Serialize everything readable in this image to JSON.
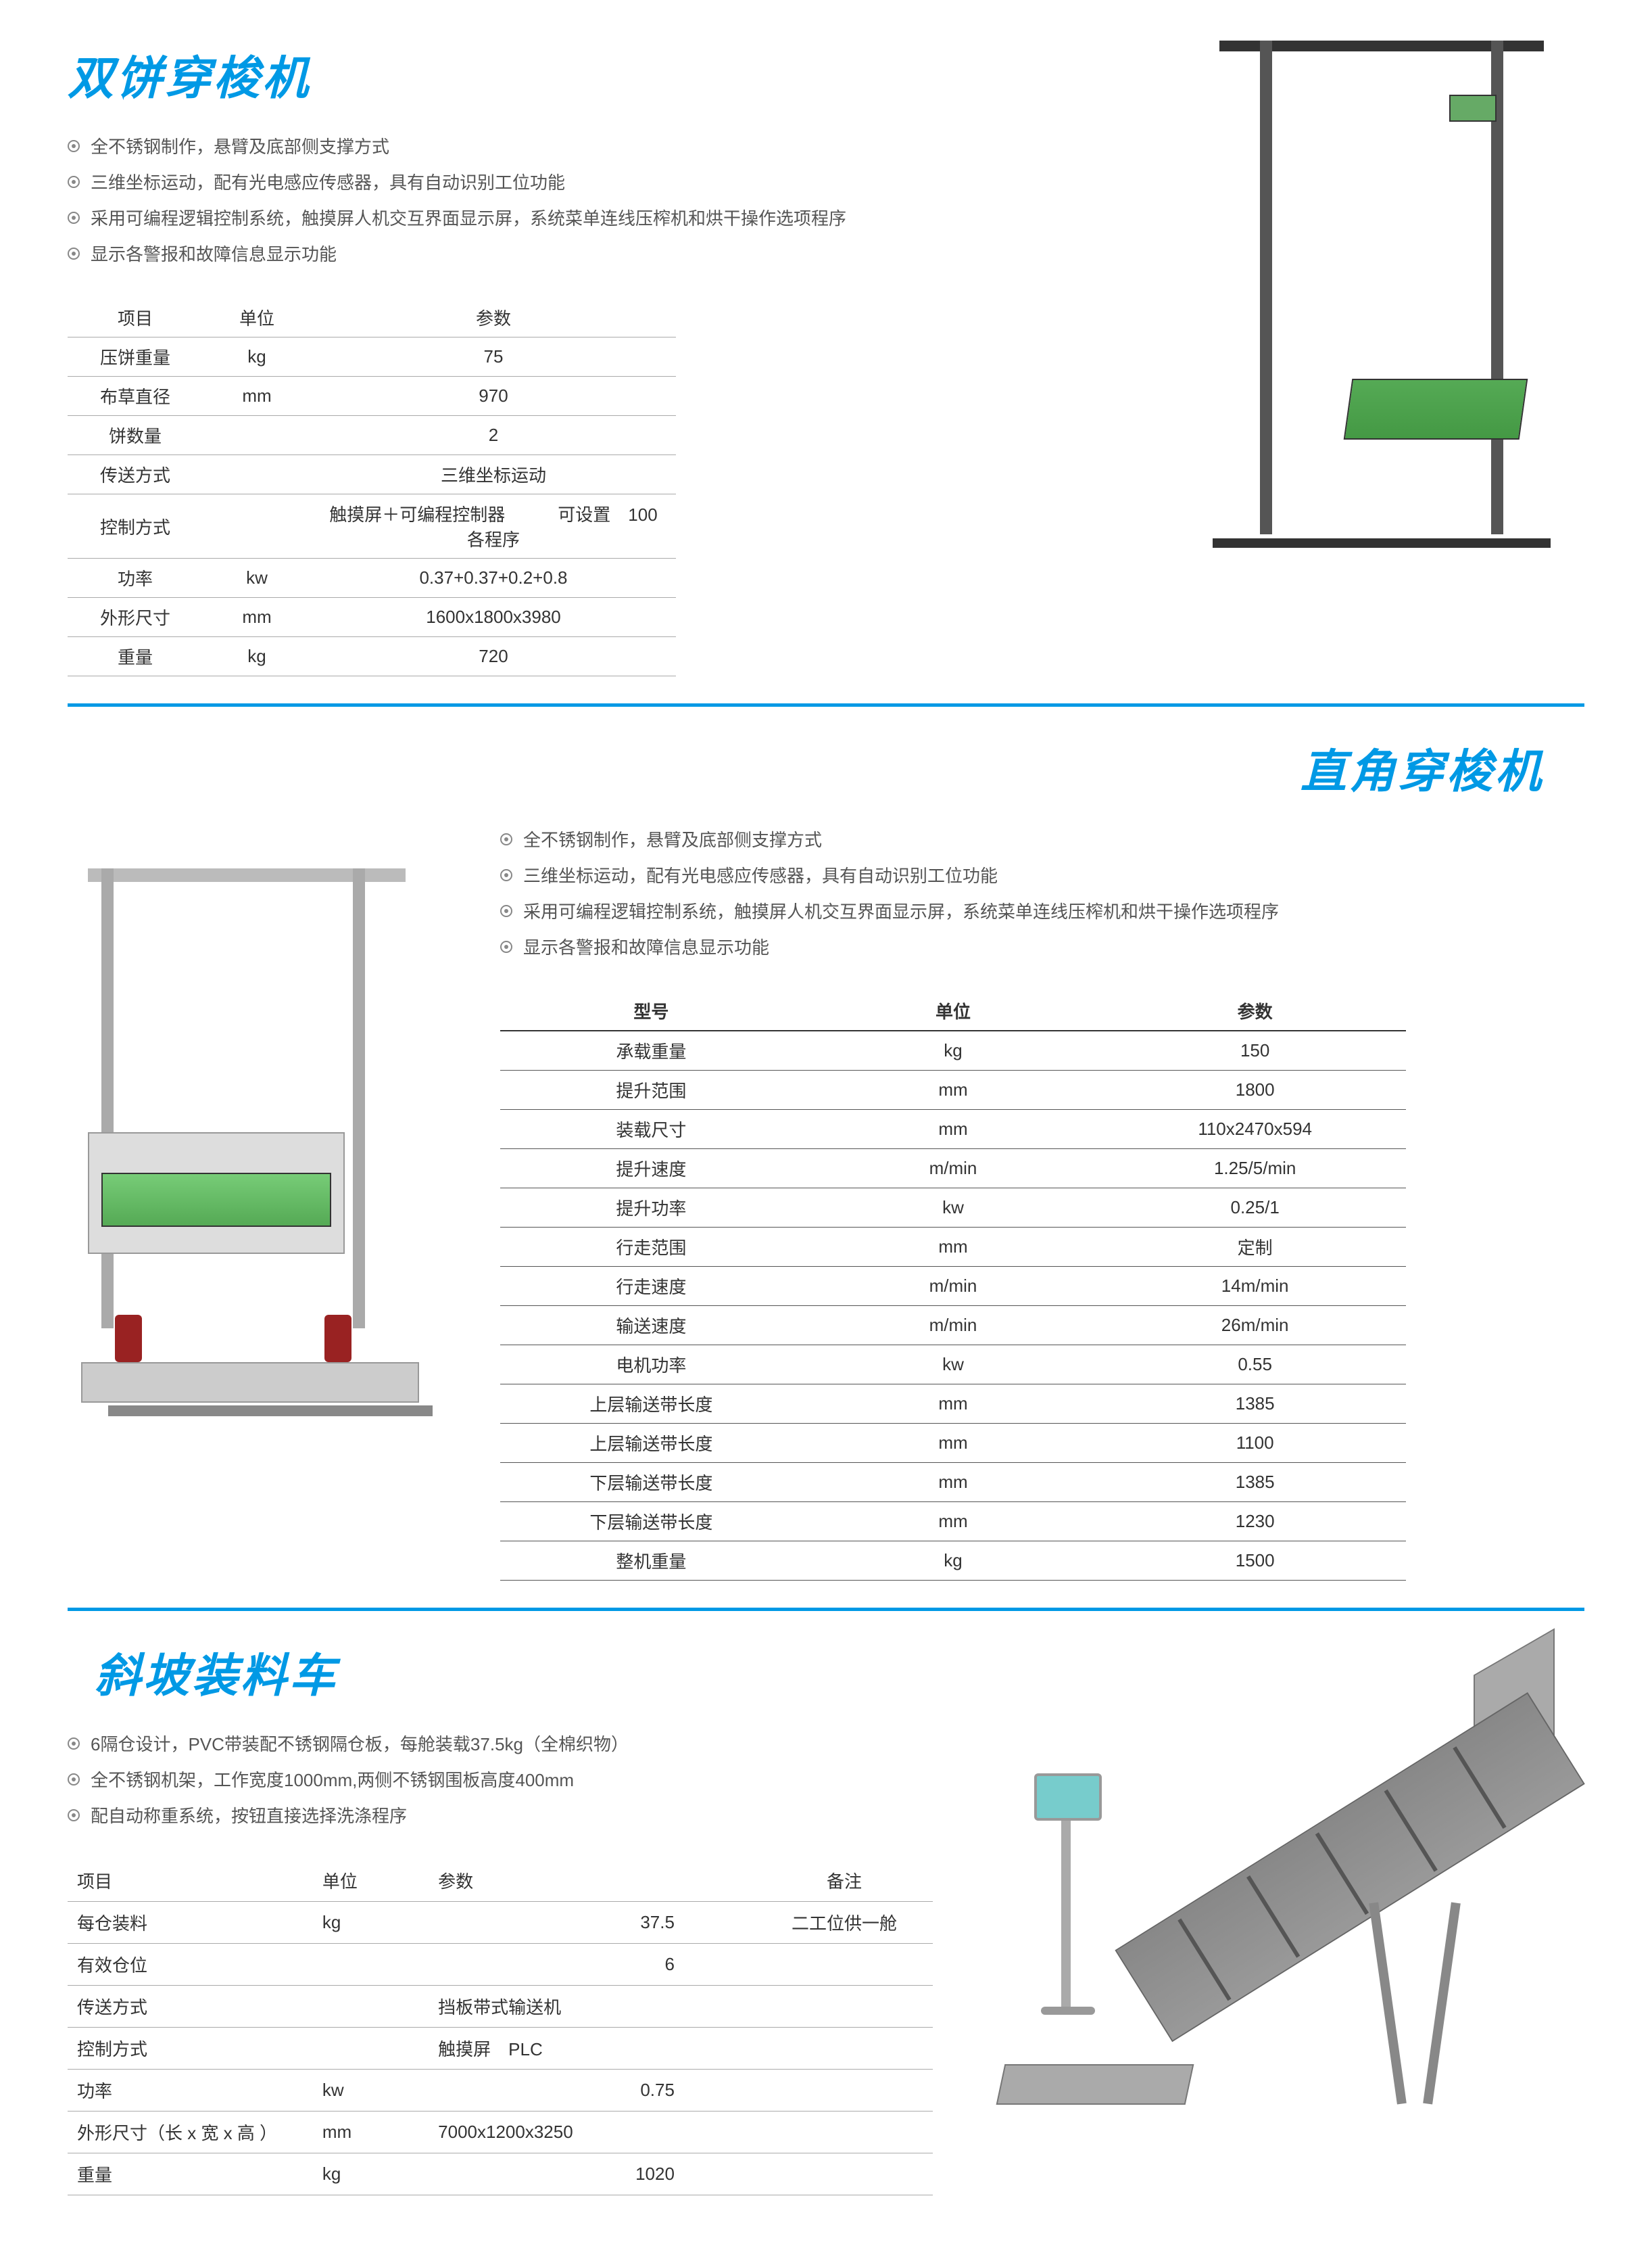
{
  "colors": {
    "accent": "#0099e5",
    "text": "#555555",
    "border": "#aaaaaa",
    "background": "#ffffff",
    "machine_green": "#55aa55",
    "machine_gray": "#999999"
  },
  "section1": {
    "title": "双饼穿梭机",
    "bullets": [
      "全不锈钢制作，悬臂及底部侧支撑方式",
      "三维坐标运动，配有光电感应传感器，具有自动识别工位功能",
      "采用可编程逻辑控制系统，触摸屏人机交互界面显示屏，系统菜单连线压榨机和烘干操作选项程序",
      "显示各警报和故障信息显示功能"
    ],
    "table": {
      "headers": [
        "项目",
        "单位",
        "参数"
      ],
      "rows": [
        [
          "压饼重量",
          "kg",
          "75"
        ],
        [
          "布草直径",
          "mm",
          "970"
        ],
        [
          "饼数量",
          "",
          "2"
        ],
        [
          "传送方式",
          "",
          "三维坐标运动"
        ],
        [
          "控制方式",
          "",
          "触摸屏＋可编程控制器　　　可设置　100 各程序"
        ],
        [
          "功率",
          "kw",
          "0.37+0.37+0.2+0.8"
        ],
        [
          "外形尺寸",
          "mm",
          "1600x1800x3980"
        ],
        [
          "重量",
          "kg",
          "720"
        ]
      ]
    }
  },
  "section2": {
    "title": "直角穿梭机",
    "bullets": [
      "全不锈钢制作，悬臂及底部侧支撑方式",
      "三维坐标运动，配有光电感应传感器，具有自动识别工位功能",
      "采用可编程逻辑控制系统，触摸屏人机交互界面显示屏，系统菜单连线压榨机和烘干操作选项程序",
      "显示各警报和故障信息显示功能"
    ],
    "table": {
      "headers": [
        "型号",
        "单位",
        "参数"
      ],
      "rows": [
        [
          "承载重量",
          "kg",
          "150"
        ],
        [
          "提升范围",
          "mm",
          "1800"
        ],
        [
          "装载尺寸",
          "mm",
          "110x2470x594"
        ],
        [
          "提升速度",
          "m/min",
          "1.25/5/min"
        ],
        [
          "提升功率",
          "kw",
          "0.25/1"
        ],
        [
          "行走范围",
          "mm",
          "定制"
        ],
        [
          "行走速度",
          "m/min",
          "14m/min"
        ],
        [
          "输送速度",
          "m/min",
          "26m/min"
        ],
        [
          "电机功率",
          "kw",
          "0.55"
        ],
        [
          "上层输送带长度",
          "mm",
          "1385"
        ],
        [
          "上层输送带长度",
          "mm",
          "1100"
        ],
        [
          "下层输送带长度",
          "mm",
          "1385"
        ],
        [
          "下层输送带长度",
          "mm",
          "1230"
        ],
        [
          "整机重量",
          "kg",
          "1500"
        ]
      ]
    }
  },
  "section3": {
    "title": "斜坡装料车",
    "bullets": [
      "6隔仓设计，PVC带装配不锈钢隔仓板，每舱装载37.5kg（全棉织物）",
      "全不锈钢机架，工作宽度1000mm,两侧不锈钢围板高度400mm",
      "配自动称重系统，按钮直接选择洗涤程序"
    ],
    "table": {
      "headers": [
        "项目",
        "单位",
        "参数",
        "备注"
      ],
      "rows": [
        [
          "每仓装料",
          "kg",
          "37.5",
          "二工位供一舱"
        ],
        [
          "有效仓位",
          "",
          "6",
          ""
        ],
        [
          "传送方式",
          "",
          "挡板带式输送机",
          ""
        ],
        [
          "控制方式",
          "",
          "触摸屏　PLC",
          ""
        ],
        [
          "功率",
          "kw",
          "0.75",
          ""
        ],
        [
          "外形尺寸（长 x 宽 x 高 ）",
          "mm",
          "7000x1200x3250",
          ""
        ],
        [
          "重量",
          "kg",
          "1020",
          ""
        ]
      ]
    }
  }
}
